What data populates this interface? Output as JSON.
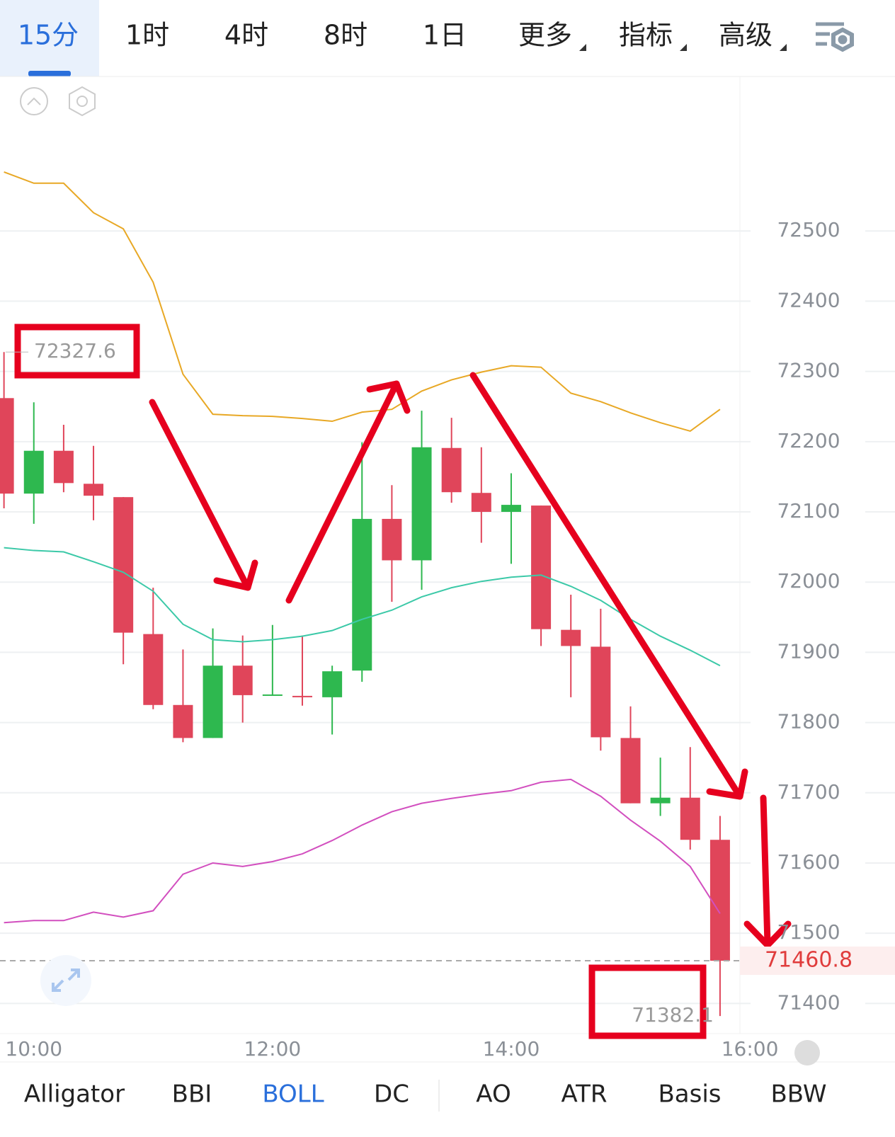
{
  "ui": {
    "tabs": [
      "15分",
      "1时",
      "4时",
      "8时",
      "1日",
      "更多",
      "指标",
      "高级"
    ],
    "indicator_tabs": [
      "Alligator",
      "BBI",
      "BOLL",
      "DC",
      "AO",
      "ATR",
      "Basis",
      "BBW"
    ],
    "active_tab": 0,
    "active_indicator": 2
  },
  "chart_data": {
    "type": "candlestick",
    "x": [
      585,
      600,
      615,
      630,
      645,
      660,
      675,
      690,
      705,
      720,
      735,
      750,
      765,
      780,
      795,
      810,
      825,
      840,
      855,
      870,
      885,
      900,
      915,
      930,
      945
    ],
    "open": [
      72262,
      72126,
      72187,
      72140,
      72121,
      71926,
      71825,
      71778,
      71881,
      71839,
      71838,
      71836,
      71874,
      72090,
      72031,
      72191,
      72127,
      72100,
      72109,
      71932,
      71908,
      71778,
      71685,
      71693,
      71633
    ],
    "high": [
      72327.6,
      72256,
      72224,
      72194,
      72121,
      71992,
      71904,
      71934,
      71924,
      71939,
      71924,
      71881,
      72199,
      72138,
      72244,
      72234,
      72192,
      72155,
      72109,
      71982,
      71962,
      71823,
      71750,
      71765,
      71667
    ],
    "low": [
      72105,
      72083,
      72128,
      72088,
      71883,
      71819,
      71772,
      71778,
      71800,
      71838,
      71824,
      71783,
      71858,
      71972,
      71989,
      72113,
      72056,
      72026,
      71909,
      71836,
      71760,
      71685,
      71667,
      71619,
      71382.1
    ],
    "close": [
      72126,
      72187,
      72141,
      72123,
      71928,
      71825,
      71778,
      71881,
      71839,
      71840,
      71837,
      71873,
      72090,
      72031,
      72192,
      72128,
      72100,
      72110,
      71933,
      71909,
      71779,
      71685,
      71693,
      71633,
      71460.8
    ],
    "up_color": "#2eb84f",
    "down_color": "#e0455a",
    "overlays": [
      {
        "type": "line",
        "color": "#e8a825",
        "values": [
          72584,
          72568,
          72568,
          72526,
          72503,
          72427,
          72296,
          72239,
          72237,
          72236,
          72233,
          72229,
          72242,
          72246,
          72272,
          72288,
          72299,
          72308,
          72306,
          72269,
          72257,
          72241,
          72227,
          72215,
          72246
        ]
      },
      {
        "type": "line",
        "color": "#3cc9a8",
        "values": [
          72049,
          72045,
          72043,
          72029,
          72014,
          71987,
          71940,
          71918,
          71915,
          71918,
          71923,
          71931,
          71947,
          71960,
          71979,
          71992,
          72001,
          72007,
          72010,
          71994,
          71974,
          71947,
          71923,
          71903,
          71881
        ]
      },
      {
        "type": "line",
        "color": "#d24fbf",
        "values": [
          71515,
          71518,
          71518,
          71530,
          71523,
          71532,
          71584,
          71600,
          71595,
          71602,
          71613,
          71632,
          71654,
          71673,
          71685,
          71692,
          71698,
          71703,
          71715,
          71719,
          71695,
          71661,
          71631,
          71595,
          71528
        ]
      }
    ],
    "xlim": [
      583,
      955
    ],
    "xticks": [
      {
        "value": 600,
        "label": "10:00"
      },
      {
        "value": 720,
        "label": "12:00"
      },
      {
        "value": 840,
        "label": "14:00"
      },
      {
        "value": 960,
        "label": "16:00"
      }
    ],
    "ylim": [
      71357,
      72718
    ],
    "yticks": [
      71400,
      71500,
      71600,
      71700,
      71800,
      71900,
      72000,
      72100,
      72200,
      72300,
      72400,
      72500
    ],
    "grid": true,
    "high_label": 72327.6,
    "low_label": 71382.1,
    "last_price": 71460.8
  }
}
